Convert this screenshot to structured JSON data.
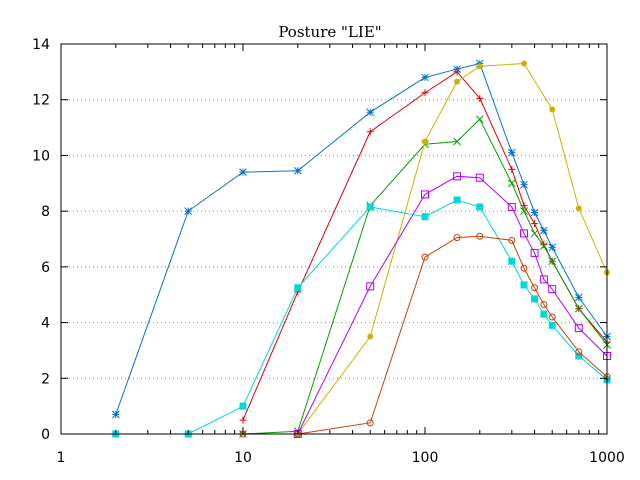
{
  "chart_data": {
    "type": "line",
    "title": "Posture \"LIE\"",
    "xlabel": "",
    "ylabel": "",
    "xscale": "log",
    "xlim": [
      1,
      1000
    ],
    "ylim": [
      0,
      14
    ],
    "xticks": [
      1,
      10,
      100,
      1000
    ],
    "xtick_labels": [
      "1",
      "10",
      "100",
      "1000"
    ],
    "yticks": [
      0,
      2,
      4,
      6,
      8,
      10,
      12,
      14
    ],
    "ytick_labels": [
      "0",
      "2",
      "4",
      "6",
      "8",
      "10",
      "12",
      "14"
    ],
    "grid": "horizontal dotted at y ticks",
    "legend": "none",
    "series": [
      {
        "color": "#0072d3",
        "marker": "asterisk",
        "points": [
          [
            2,
            0.7
          ],
          [
            5,
            8.0
          ],
          [
            10,
            9.4
          ],
          [
            20,
            9.45
          ],
          [
            50,
            11.55
          ],
          [
            100,
            12.8
          ],
          [
            150,
            13.1
          ],
          [
            200,
            13.3
          ],
          [
            300,
            10.1
          ],
          [
            350,
            8.95
          ],
          [
            400,
            7.95
          ],
          [
            450,
            7.3
          ],
          [
            500,
            6.7
          ],
          [
            700,
            4.9
          ],
          [
            1000,
            3.5
          ]
        ]
      },
      {
        "color": "#dc0000",
        "marker": "plus",
        "points": [
          [
            10,
            0.5
          ],
          [
            20,
            5.1
          ],
          [
            50,
            10.85
          ],
          [
            100,
            12.25
          ],
          [
            150,
            13.0
          ],
          [
            200,
            12.05
          ],
          [
            300,
            9.5
          ],
          [
            350,
            8.2
          ],
          [
            400,
            7.55
          ],
          [
            450,
            6.8
          ],
          [
            500,
            6.2
          ],
          [
            700,
            4.5
          ],
          [
            1000,
            3.3
          ]
        ]
      },
      {
        "color": "#00a000",
        "marker": "x",
        "points": [
          [
            10,
            0.0
          ],
          [
            20,
            0.1
          ],
          [
            50,
            8.2
          ],
          [
            100,
            10.4
          ],
          [
            150,
            10.5
          ],
          [
            200,
            11.3
          ],
          [
            300,
            9.0
          ],
          [
            350,
            8.0
          ],
          [
            400,
            7.2
          ],
          [
            450,
            6.75
          ],
          [
            500,
            6.2
          ],
          [
            700,
            4.5
          ],
          [
            1000,
            3.2
          ]
        ]
      },
      {
        "color": "#c8b400",
        "marker": "filled-circle",
        "points": [
          [
            20,
            0.0
          ],
          [
            50,
            3.5
          ],
          [
            100,
            10.5
          ],
          [
            150,
            12.65
          ],
          [
            200,
            13.2
          ],
          [
            350,
            13.3
          ],
          [
            500,
            11.65
          ],
          [
            700,
            8.1
          ],
          [
            1000,
            5.8
          ]
        ]
      },
      {
        "color": "#b400ff",
        "marker": "open-square",
        "points": [
          [
            20,
            0.0
          ],
          [
            50,
            5.3
          ],
          [
            100,
            8.6
          ],
          [
            150,
            9.25
          ],
          [
            200,
            9.2
          ],
          [
            300,
            8.15
          ],
          [
            350,
            7.2
          ],
          [
            400,
            6.5
          ],
          [
            450,
            5.55
          ],
          [
            500,
            5.2
          ],
          [
            700,
            3.8
          ],
          [
            1000,
            2.8
          ]
        ]
      },
      {
        "color": "#00d8d8",
        "marker": "filled-square",
        "points": [
          [
            2,
            0.0
          ],
          [
            5,
            0.0
          ],
          [
            10,
            1.0
          ],
          [
            20,
            5.25
          ],
          [
            50,
            8.15
          ],
          [
            100,
            7.8
          ],
          [
            150,
            8.4
          ],
          [
            200,
            8.15
          ],
          [
            300,
            6.2
          ],
          [
            350,
            5.35
          ],
          [
            400,
            4.85
          ],
          [
            450,
            4.3
          ],
          [
            500,
            3.9
          ],
          [
            700,
            2.8
          ],
          [
            1000,
            1.95
          ]
        ]
      },
      {
        "color": "#c84000",
        "marker": "open-circle",
        "points": [
          [
            10,
            0.0
          ],
          [
            20,
            0.0
          ],
          [
            50,
            0.4
          ],
          [
            100,
            6.35
          ],
          [
            150,
            7.05
          ],
          [
            200,
            7.1
          ],
          [
            300,
            6.95
          ],
          [
            350,
            5.95
          ],
          [
            400,
            5.25
          ],
          [
            450,
            4.65
          ],
          [
            500,
            4.2
          ],
          [
            700,
            2.95
          ],
          [
            1000,
            2.05
          ]
        ]
      }
    ]
  }
}
